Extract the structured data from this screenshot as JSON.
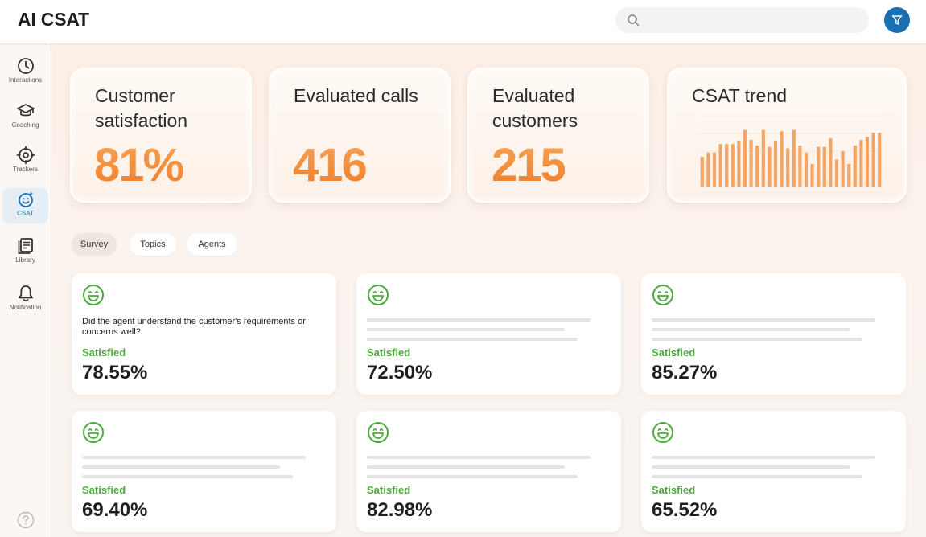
{
  "header": {
    "title": "AI CSAT",
    "search_placeholder": ""
  },
  "sidebar": {
    "items": [
      {
        "label": "Interactions",
        "icon": "clock-icon"
      },
      {
        "label": "Coaching",
        "icon": "graduation-cap-icon"
      },
      {
        "label": "Trackers",
        "icon": "crosshair-icon"
      },
      {
        "label": "CSAT",
        "icon": "smiley-icon",
        "active": true
      },
      {
        "label": "Library",
        "icon": "library-icon"
      },
      {
        "label": "Notification",
        "icon": "bell-icon"
      }
    ]
  },
  "stats": [
    {
      "title": "Customer satisfaction",
      "value": "81%"
    },
    {
      "title": "Evaluated calls",
      "value": "416"
    },
    {
      "title": "Evaluated customers",
      "value": "215"
    }
  ],
  "trend": {
    "title": "CSAT trend",
    "chart_data": {
      "type": "bar",
      "values": [
        42,
        48,
        48,
        60,
        60,
        60,
        64,
        80,
        66,
        58,
        80,
        56,
        64,
        78,
        54,
        80,
        58,
        48,
        32,
        56,
        56,
        68,
        38,
        50,
        32,
        58,
        66,
        70,
        76,
        76
      ],
      "ylim": [
        0,
        100
      ],
      "grid": true,
      "color": "#f2a565"
    }
  },
  "tabs": [
    {
      "label": "Survey",
      "active": true
    },
    {
      "label": "Topics"
    },
    {
      "label": "Agents"
    }
  ],
  "cards": [
    {
      "question": "Did the agent understand the customer's requirements or concerns well?",
      "status": "Satisfied",
      "value": "78.55%"
    },
    {
      "question": "",
      "status": "Satisfied",
      "value": "72.50%"
    },
    {
      "question": "",
      "status": "Satisfied",
      "value": "85.27%"
    },
    {
      "question": "",
      "status": "Satisfied",
      "value": "69.40%"
    },
    {
      "question": "",
      "status": "Satisfied",
      "value": "82.98%"
    },
    {
      "question": "",
      "status": "Satisfied",
      "value": "65.52%"
    }
  ],
  "colors": {
    "accent": "#ee7c2a",
    "primary": "#1a6fb0",
    "success": "#4caa3d"
  }
}
